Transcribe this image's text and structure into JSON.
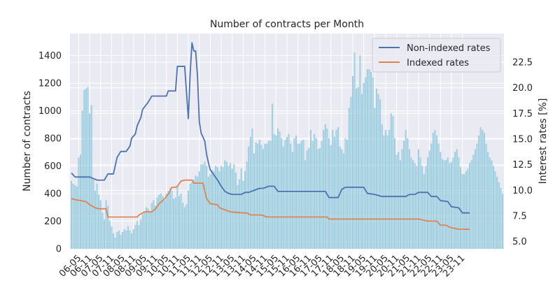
{
  "chart_data": {
    "type": "bar",
    "title": "Number of contracts per Month",
    "ylabel": "Number of contracts",
    "y2label": "Interest rates [%]",
    "ylim": [
      0,
      1560
    ],
    "y2lim": [
      4.3,
      25.3
    ],
    "yticks": [
      0,
      200,
      400,
      600,
      800,
      1000,
      1200,
      1400
    ],
    "y2ticks": [
      5.0,
      7.5,
      10.0,
      12.5,
      15.0,
      17.5,
      20.0,
      22.5
    ],
    "y2tick_labels": [
      "5.0",
      "7.5",
      "10.0",
      "12.5",
      "15.0",
      "17.5",
      "20.0",
      "22.5"
    ],
    "x_tick_labels": [
      "2006-05",
      "2006-11",
      "2007-05",
      "2007-11",
      "2008-05",
      "2008-11",
      "2009-05",
      "2009-11",
      "2010-05",
      "2010-11",
      "2011-05",
      "2011-11",
      "2012-05",
      "2012-11",
      "2013-05",
      "2013-11",
      "2014-05",
      "2014-11",
      "2015-05",
      "2015-11",
      "2016-05",
      "2016-11",
      "2017-05",
      "2017-11",
      "2018-05",
      "2018-11",
      "2019-05",
      "2019-11",
      "2020-05",
      "2020-11",
      "2021-05",
      "2021-11",
      "2022-05",
      "2022-11",
      "2023-05",
      "2023-11"
    ],
    "x_tick_display": [
      "06-05",
      "06-11",
      "07-05",
      "07-11",
      "08-05",
      "08-11",
      "09-05",
      "09-11",
      "10-05",
      "10-11",
      "11-05",
      "11-11",
      "12-05",
      "12-11",
      "13-05",
      "13-11",
      "14-05",
      "14-11",
      "15-05",
      "15-11",
      "16-05",
      "16-11",
      "17-05",
      "17-11",
      "18-05",
      "18-11",
      "19-05",
      "19-11",
      "20-05",
      "20-11",
      "21-05",
      "21-11",
      "22-05",
      "22-11",
      "23-05",
      "23-11"
    ],
    "grid": true,
    "legend_position": "top-right",
    "colors": {
      "bars": "#a9d6e5",
      "bar_edge": "#74b9d3",
      "non_indexed": "#4c72b0",
      "indexed": "#dd8452",
      "plot_bg": "#eaeaf2",
      "grid": "#ffffff"
    },
    "bars": {
      "name": "Number of contracts",
      "start": "2006-01",
      "values": [
        490,
        470,
        460,
        450,
        660,
        680,
        1000,
        1150,
        1160,
        1170,
        980,
        1040,
        500,
        420,
        470,
        390,
        350,
        260,
        210,
        350,
        310,
        200,
        160,
        110,
        80,
        120,
        130,
        100,
        120,
        140,
        130,
        160,
        130,
        110,
        140,
        170,
        200,
        170,
        210,
        250,
        260,
        300,
        290,
        260,
        330,
        350,
        310,
        370,
        390,
        400,
        380,
        350,
        400,
        420,
        440,
        420,
        360,
        370,
        450,
        380,
        400,
        330,
        300,
        320,
        420,
        470,
        480,
        500,
        530,
        520,
        560,
        610,
        610,
        630,
        600,
        520,
        540,
        570,
        560,
        600,
        590,
        560,
        600,
        590,
        640,
        630,
        600,
        620,
        580,
        610,
        550,
        460,
        500,
        580,
        490,
        560,
        630,
        740,
        810,
        870,
        690,
        770,
        760,
        790,
        750,
        720,
        760,
        760,
        780,
        780,
        1050,
        830,
        820,
        870,
        850,
        800,
        740,
        790,
        810,
        830,
        760,
        700,
        800,
        820,
        760,
        760,
        780,
        790,
        640,
        710,
        730,
        860,
        780,
        830,
        800,
        720,
        730,
        780,
        860,
        900,
        870,
        800,
        750,
        860,
        810,
        860,
        880,
        740,
        720,
        690,
        800,
        790,
        1020,
        1100,
        1250,
        1420,
        1160,
        1170,
        1400,
        1120,
        1200,
        1240,
        1300,
        1300,
        1280,
        1240,
        1020,
        1160,
        1120,
        1080,
        900,
        820,
        860,
        820,
        860,
        980,
        960,
        800,
        680,
        700,
        640,
        720,
        780,
        860,
        800,
        720,
        660,
        640,
        620,
        600,
        720,
        660,
        600,
        540,
        600,
        660,
        710,
        760,
        840,
        860,
        820,
        760,
        700,
        650,
        640,
        640,
        660,
        620,
        630,
        660,
        700,
        720,
        660,
        590,
        540,
        540,
        560,
        580,
        620,
        640,
        680,
        720,
        760,
        820,
        880,
        860,
        840,
        760,
        700,
        660,
        640,
        600,
        560,
        520,
        480,
        440,
        400
      ]
    },
    "series": [
      {
        "name": "Non-indexed rates",
        "axis": "right",
        "points": [
          [
            0,
            11.7
          ],
          [
            2,
            11.3
          ],
          [
            10,
            11.3
          ],
          [
            14,
            11.0
          ],
          [
            18,
            11.0
          ],
          [
            20,
            11.6
          ],
          [
            23,
            11.6
          ],
          [
            25,
            13.2
          ],
          [
            27,
            13.8
          ],
          [
            30,
            13.8
          ],
          [
            32,
            14.3
          ],
          [
            33,
            15.1
          ],
          [
            35,
            15.5
          ],
          [
            36,
            16.3
          ],
          [
            38,
            17.1
          ],
          [
            39,
            17.9
          ],
          [
            42,
            18.6
          ],
          [
            44,
            19.2
          ],
          [
            46,
            19.2
          ],
          [
            52,
            19.2
          ],
          [
            53,
            19.7
          ],
          [
            57,
            19.7
          ],
          [
            58,
            22.1
          ],
          [
            62,
            22.1
          ],
          [
            64,
            17.0
          ],
          [
            65,
            21.4
          ],
          [
            66,
            24.4
          ],
          [
            67,
            23.6
          ],
          [
            68,
            23.6
          ],
          [
            69,
            21.2
          ],
          [
            70,
            16.7
          ],
          [
            71,
            15.6
          ],
          [
            73,
            14.8
          ],
          [
            74,
            13.5
          ],
          [
            75,
            12.7
          ],
          [
            76,
            12.0
          ],
          [
            78,
            11.5
          ],
          [
            80,
            11.0
          ],
          [
            82,
            10.4
          ],
          [
            84,
            9.9
          ],
          [
            86,
            9.7
          ],
          [
            88,
            9.6
          ],
          [
            93,
            9.6
          ],
          [
            95,
            9.8
          ],
          [
            97,
            9.8
          ],
          [
            100,
            10.0
          ],
          [
            103,
            10.2
          ],
          [
            105,
            10.2
          ],
          [
            108,
            10.4
          ],
          [
            111,
            10.4
          ],
          [
            113,
            9.9
          ],
          [
            120,
            9.9
          ],
          [
            122,
            9.9
          ],
          [
            126,
            9.9
          ],
          [
            128,
            9.9
          ],
          [
            131,
            9.9
          ],
          [
            133,
            9.9
          ],
          [
            136,
            9.9
          ],
          [
            139,
            9.9
          ],
          [
            141,
            9.3
          ],
          [
            146,
            9.3
          ],
          [
            148,
            10.1
          ],
          [
            150,
            10.3
          ],
          [
            160,
            10.3
          ],
          [
            162,
            9.7
          ],
          [
            166,
            9.6
          ],
          [
            170,
            9.4
          ],
          [
            173,
            9.4
          ],
          [
            180,
            9.4
          ],
          [
            183,
            9.4
          ],
          [
            185,
            9.6
          ],
          [
            188,
            9.6
          ],
          [
            190,
            9.8
          ],
          [
            195,
            9.8
          ],
          [
            197,
            9.4
          ],
          [
            200,
            9.4
          ],
          [
            202,
            9.0
          ],
          [
            206,
            8.9
          ],
          [
            208,
            8.4
          ],
          [
            212,
            8.3
          ],
          [
            214,
            7.8
          ],
          [
            218,
            7.8
          ]
        ]
      },
      {
        "name": "Indexed rates",
        "axis": "right",
        "points": [
          [
            0,
            9.2
          ],
          [
            2,
            9.1
          ],
          [
            5,
            9.0
          ],
          [
            8,
            8.9
          ],
          [
            10,
            8.6
          ],
          [
            13,
            8.3
          ],
          [
            15,
            8.2
          ],
          [
            19,
            8.2
          ],
          [
            20,
            7.4
          ],
          [
            26,
            7.4
          ],
          [
            36,
            7.4
          ],
          [
            37,
            7.6
          ],
          [
            40,
            7.9
          ],
          [
            44,
            7.9
          ],
          [
            46,
            8.2
          ],
          [
            48,
            8.7
          ],
          [
            50,
            9.0
          ],
          [
            53,
            9.6
          ],
          [
            55,
            10.3
          ],
          [
            57,
            10.3
          ],
          [
            58,
            10.4
          ],
          [
            60,
            10.9
          ],
          [
            62,
            11.0
          ],
          [
            66,
            11.0
          ],
          [
            67,
            10.7
          ],
          [
            72,
            10.7
          ],
          [
            74,
            9.2
          ],
          [
            76,
            8.7
          ],
          [
            80,
            8.6
          ],
          [
            81,
            8.3
          ],
          [
            84,
            8.1
          ],
          [
            87,
            7.9
          ],
          [
            94,
            7.8
          ],
          [
            96,
            7.8
          ],
          [
            98,
            7.6
          ],
          [
            100,
            7.6
          ],
          [
            104,
            7.6
          ],
          [
            107,
            7.4
          ],
          [
            110,
            7.4
          ],
          [
            114,
            7.4
          ],
          [
            120,
            7.4
          ],
          [
            121,
            7.4
          ],
          [
            127,
            7.4
          ],
          [
            140,
            7.4
          ],
          [
            141,
            7.2
          ],
          [
            150,
            7.2
          ],
          [
            155,
            7.2
          ],
          [
            160,
            7.2
          ],
          [
            170,
            7.2
          ],
          [
            180,
            7.2
          ],
          [
            190,
            7.2
          ],
          [
            195,
            7.0
          ],
          [
            200,
            7.0
          ],
          [
            202,
            6.6
          ],
          [
            205,
            6.6
          ],
          [
            207,
            6.4
          ],
          [
            212,
            6.2
          ],
          [
            218,
            6.2
          ]
        ]
      }
    ]
  }
}
